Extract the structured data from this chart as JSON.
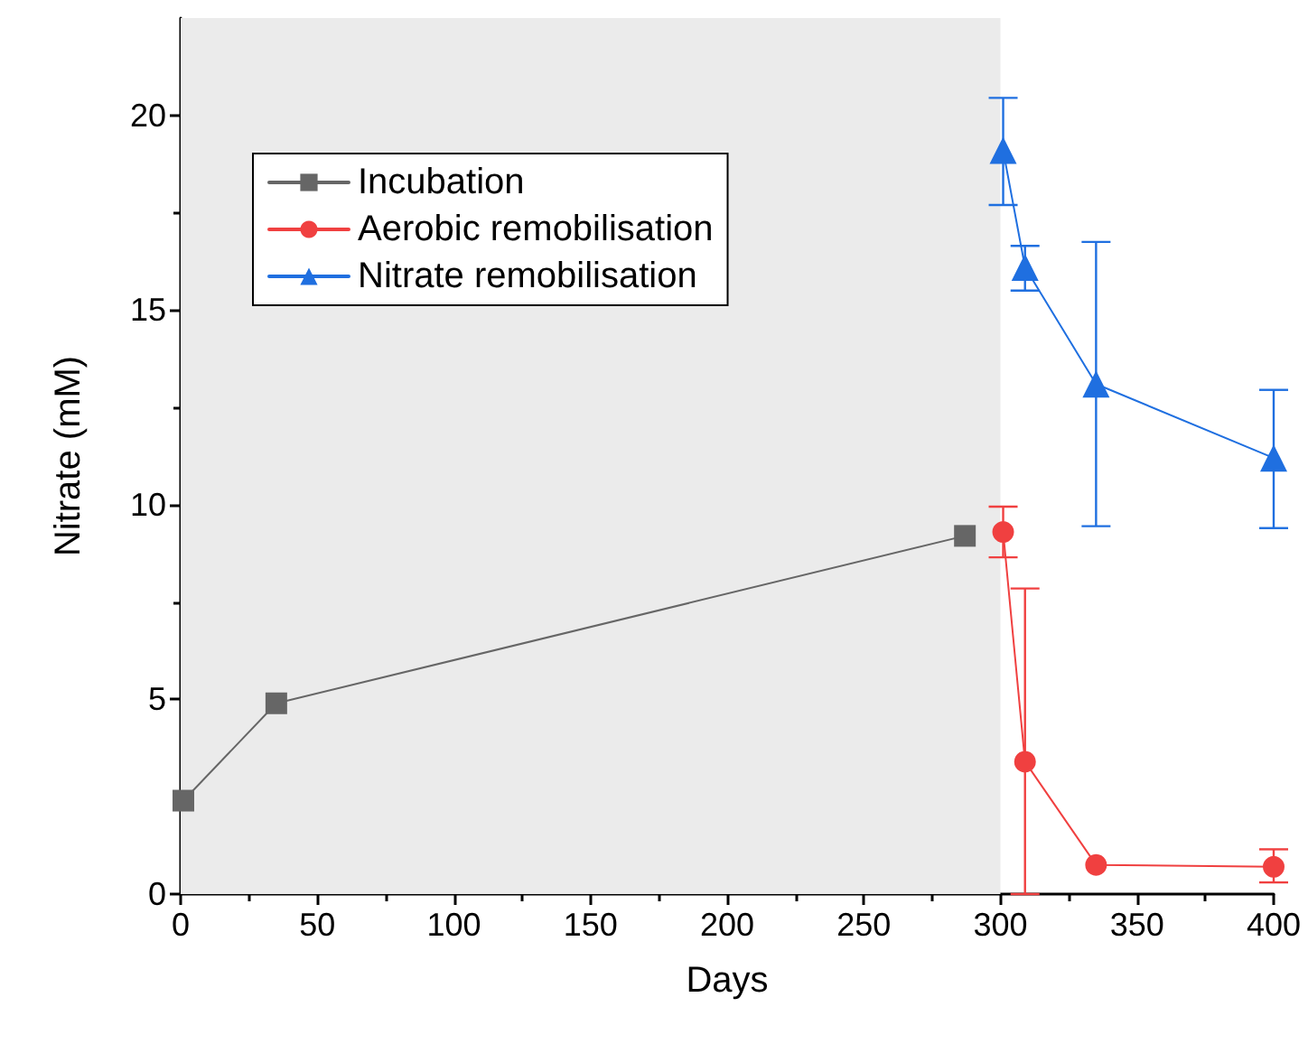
{
  "chart_data": {
    "type": "line",
    "xlabel": "Days",
    "ylabel": "Nitrate (mM)",
    "xlim": [
      0,
      400
    ],
    "xticks": [
      0,
      50,
      100,
      150,
      200,
      250,
      300,
      350,
      400
    ],
    "ylim": [
      0,
      22.5
    ],
    "yticks": [
      0,
      5,
      10,
      15,
      20
    ],
    "grid": false,
    "legend": "top left",
    "line_style": "solid",
    "bands": [
      {
        "axis": "x",
        "from": 0,
        "to": 300,
        "color": "#ebebeb"
      }
    ],
    "series": [
      {
        "name": "Incubation",
        "color": "#666666",
        "marker": "square",
        "x": [
          1,
          35,
          287
        ],
        "values": [
          2.4,
          4.9,
          9.2
        ]
      },
      {
        "name": "Aerobic remobilisation",
        "color": "#f04040",
        "marker": "circle",
        "x": [
          301,
          309,
          335,
          400
        ],
        "values": [
          9.3,
          3.4,
          0.75,
          0.7
        ],
        "errors": [
          [
            8.65,
            9.95
          ],
          [
            0,
            7.85
          ],
          null,
          [
            0.3,
            1.15
          ]
        ]
      },
      {
        "name": "Nitrate remobilisation",
        "color": "#1f6fe0",
        "marker": "triangle",
        "x": [
          301,
          309,
          335,
          400
        ],
        "values": [
          19.1,
          16.1,
          13.1,
          11.2
        ],
        "errors": [
          [
            17.7,
            20.45
          ],
          [
            15.5,
            16.65
          ],
          [
            9.45,
            16.75
          ],
          [
            9.4,
            12.95
          ]
        ]
      }
    ]
  }
}
